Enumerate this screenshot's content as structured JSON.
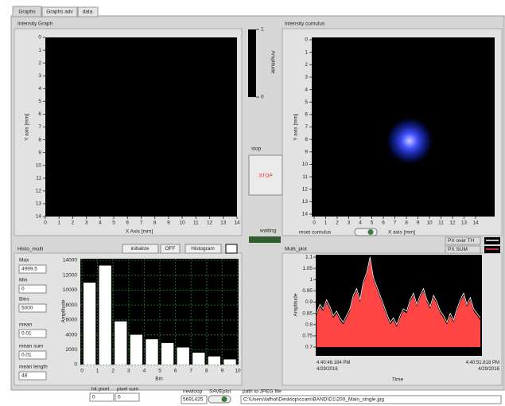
{
  "tabs": [
    "Graphs",
    "Graphs adv",
    "data"
  ],
  "intensity_graph": {
    "title": "Intensity Graph",
    "x_label": "X Axis [mm]",
    "y_label": "Y axis [mm]",
    "xlim": [
      0,
      14
    ],
    "ylim": [
      14,
      0
    ],
    "xticks": [
      0,
      1,
      2,
      3,
      4,
      5,
      6,
      7,
      8,
      9,
      10,
      11,
      12,
      13,
      14
    ],
    "yticks": [
      0,
      1,
      2,
      3,
      4,
      5,
      6,
      7,
      8,
      9,
      10,
      11,
      12,
      13,
      14
    ]
  },
  "color_ramp": {
    "label": "Amplitude",
    "lim": [
      0,
      1
    ],
    "ticks": [
      0,
      1
    ]
  },
  "stop": {
    "label": "stop",
    "button": "STOP"
  },
  "waiting": "waiting",
  "intensity_cumulus": {
    "title": "Intensity cumulus",
    "x_label": "X axis [mm]",
    "y_label": "Y axis [mm]",
    "xlim": [
      0,
      14
    ],
    "ylim": [
      14,
      0
    ],
    "xticks": [
      0,
      1,
      2,
      3,
      4,
      5,
      6,
      7,
      8,
      9,
      10,
      11,
      12,
      13,
      14
    ],
    "yticks": [
      0,
      1,
      2,
      3,
      4,
      5,
      6,
      7,
      8,
      9,
      10,
      11,
      12,
      13,
      14
    ],
    "reset_label": "reset cumulus"
  },
  "buttons": {
    "initialize": "initialize",
    "off": "OFF",
    "histogram": "Histogram"
  },
  "histo_multi": {
    "title": "Histo_multi",
    "fields": [
      {
        "label": "Max",
        "value": 4999.5
      },
      {
        "label": "Min",
        "value": 0
      },
      {
        "label": "Bins",
        "value": 5000
      },
      {
        "label": "mean",
        "value": 0.01
      },
      {
        "label": "mean sum",
        "value": 0.01
      },
      {
        "label": "mean length",
        "value": 48
      }
    ]
  },
  "multi_plot": {
    "title": "Multi_plot"
  },
  "bottom": {
    "hit_pixel": {
      "label": "hit pixel",
      "value": 0
    },
    "pixel_sum": {
      "label": "pixel sum",
      "value": 0
    },
    "newloop": {
      "label": "newloop",
      "value": 5691425
    },
    "saveplot": "SAVEplot",
    "path": {
      "label": "path to JPEG file",
      "value": "C:\\Users\\lafhol\\Desktop\\ccam\\BAND\\D1\\200_Main_single.jpg"
    }
  },
  "chart_data": [
    {
      "type": "bar",
      "x_label": "Bin",
      "y_label": "Amplitude",
      "x": [
        0,
        1,
        2,
        3,
        4,
        5,
        6,
        7,
        8,
        9
      ],
      "values": [
        11000,
        13300,
        5800,
        4000,
        3400,
        2900,
        2300,
        1600,
        1100,
        700
      ],
      "color": "#ffffff",
      "xlim": [
        0,
        10
      ],
      "xticks": [
        0,
        1,
        2,
        3,
        4,
        5,
        6,
        7,
        8,
        9,
        10
      ],
      "ylim": [
        0,
        14000
      ],
      "yticks": [
        0,
        2000,
        4000,
        6000,
        8000,
        10000,
        12000,
        14000
      ],
      "grid": true
    },
    {
      "type": "line",
      "x_label": "Time",
      "y_label": "Amplitude",
      "categories": [
        "4:40:46.184 PM\n4/29/2016",
        null,
        null,
        null,
        null,
        null,
        null,
        null,
        null,
        null,
        null,
        null,
        null,
        null,
        null,
        null,
        null,
        null,
        null,
        null,
        null,
        null,
        null,
        null,
        null,
        null,
        null,
        null,
        null,
        null,
        null,
        null,
        null,
        null,
        null,
        null,
        null,
        null,
        null,
        null,
        null,
        null,
        null,
        null,
        null,
        null,
        null,
        null,
        null,
        "4:40:51.818 PM\n4/29/2016"
      ],
      "ylim": [
        0.7,
        1.1
      ],
      "yticks": [
        0.7,
        0.75,
        0.8,
        0.85,
        0.9,
        0.95,
        1,
        1.05,
        1.1
      ],
      "series": [
        {
          "name": "PX over TH",
          "color": "#ffffff",
          "fill": false,
          "values": [
            0.85,
            0.89,
            0.87,
            0.91,
            0.88,
            0.84,
            0.86,
            0.83,
            0.81,
            0.84,
            0.87,
            0.93,
            0.96,
            0.91,
            0.99,
            1.03,
            1.1,
            1.01,
            0.97,
            0.93,
            0.89,
            0.85,
            0.81,
            0.83,
            0.8,
            0.84,
            0.87,
            0.86,
            0.91,
            0.94,
            0.89,
            0.93,
            0.96,
            0.91,
            0.88,
            0.93,
            0.9,
            0.86,
            0.84,
            0.81,
            0.85,
            0.82,
            0.87,
            0.91,
            0.94,
            0.89,
            0.92,
            0.87,
            0.85,
            0.83
          ]
        },
        {
          "name": "PX SUM",
          "color": "#ff4444",
          "fill": true,
          "values": [
            0.84,
            0.88,
            0.86,
            0.9,
            0.87,
            0.83,
            0.85,
            0.82,
            0.8,
            0.83,
            0.86,
            0.92,
            0.95,
            0.9,
            0.98,
            1.02,
            1.09,
            1.0,
            0.96,
            0.92,
            0.88,
            0.84,
            0.8,
            0.82,
            0.79,
            0.83,
            0.86,
            0.85,
            0.9,
            0.93,
            0.88,
            0.92,
            0.95,
            0.9,
            0.87,
            0.92,
            0.89,
            0.85,
            0.83,
            0.8,
            0.84,
            0.81,
            0.86,
            0.9,
            0.93,
            0.88,
            0.91,
            0.86,
            0.84,
            0.82
          ]
        }
      ]
    }
  ]
}
